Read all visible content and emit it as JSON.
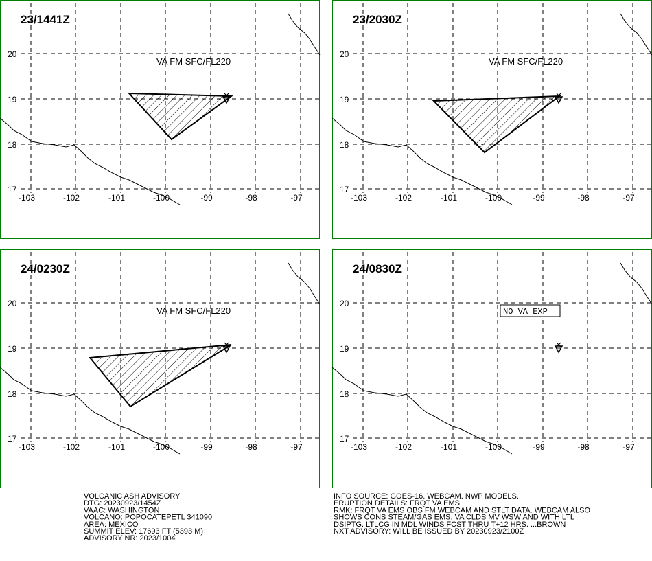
{
  "panels": [
    {
      "time": "23/1441Z",
      "label": "VA FM SFC/FL220"
    },
    {
      "time": "23/2030Z",
      "label": "VA FM SFC/FL220"
    },
    {
      "time": "24/0230Z",
      "label": "VA FM SFC/FL220"
    },
    {
      "time": "24/0830Z",
      "label": "NO VA EXP"
    }
  ],
  "lat_labels": [
    "20",
    "19",
    "18",
    "17"
  ],
  "lon_labels": [
    "-103",
    "-102",
    "-101",
    "-100",
    "-99",
    "-98",
    "-97"
  ],
  "advisory_left": [
    "VOLCANIC ASH ADVISORY",
    "DTG: 20230923/1454Z",
    "VAAC: WASHINGTON",
    "VOLCANO: POPOCATEPETL 341090",
    "AREA: MEXICO",
    "SUMMIT ELEV: 17693 FT (5393 M)",
    "ADVISORY NR: 2023/1004"
  ],
  "advisory_right": [
    "INFO SOURCE: GOES-16. WEBCAM. NWP MODELS.",
    "ERUPTION DETAILS: FRQT VA EMS",
    "RMK: FRQT VA EMS OBS FM WEBCAM AND STLT DATA. WEBCAM ALSO",
    "SHOWS CONS STEAM/GAS EMS. VA CLDS MV WSW AND WITH LTL",
    "DSIPTG. LTLCG IN MDL WINDS FCST THRU T+12 HRS. ...BROWN",
    "NXT ADVISORY: WILL BE ISSUED BY 20230923/2100Z"
  ]
}
